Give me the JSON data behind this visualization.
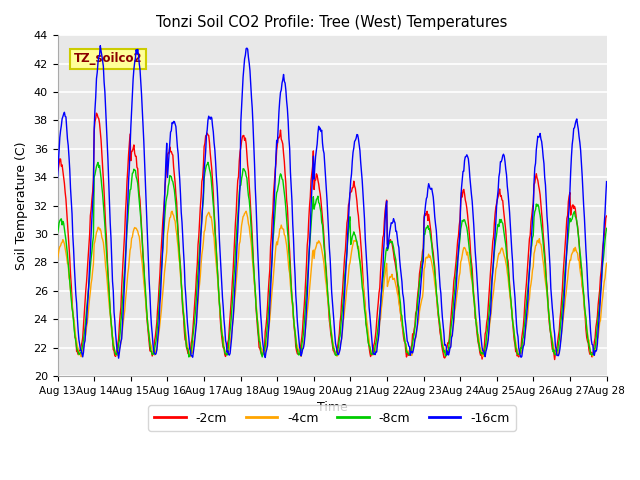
{
  "title": "Tonzi Soil CO2 Profile: Tree (West) Temperatures",
  "xlabel": "Time",
  "ylabel": "Soil Temperature (C)",
  "ylim": [
    20,
    44
  ],
  "annotation": "TZ_soilco2",
  "annotation_color": "#8B0000",
  "annotation_bg": "#FFFF99",
  "annotation_border": "#CCCC00",
  "colors": {
    "-2cm": "#FF0000",
    "-4cm": "#FFA500",
    "-8cm": "#00CC00",
    "-16cm": "#0000FF"
  },
  "legend_labels": [
    "-2cm",
    "-4cm",
    "-8cm",
    "-16cm"
  ],
  "xtick_labels": [
    "Aug 13",
    "Aug 14",
    "Aug 15",
    "Aug 16",
    "Aug 17",
    "Aug 18",
    "Aug 19",
    "Aug 20",
    "Aug 21",
    "Aug 22",
    "Aug 23",
    "Aug 24",
    "Aug 25",
    "Aug 26",
    "Aug 27",
    "Aug 28"
  ],
  "background_color": "#E8E8E8",
  "grid_color": "#FFFFFF",
  "fig_bg": "#FFFFFF",
  "figsize": [
    6.4,
    4.8
  ],
  "dpi": 100
}
